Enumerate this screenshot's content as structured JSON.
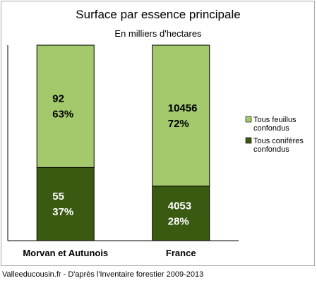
{
  "chart_data": {
    "type": "bar",
    "stacked": true,
    "title": "Surface par essence principale",
    "subtitle": "En milliers d'hectares",
    "categories": [
      "Morvan et Autunois",
      "France"
    ],
    "series": [
      {
        "name": "Tous conifères confondus",
        "color": "#3a5a12",
        "values": [
          55,
          4053
        ],
        "percent_labels": [
          "37%",
          "28%"
        ],
        "label_color": "#ffffff"
      },
      {
        "name": "Tous feuillus confondus",
        "color": "#a3c96c",
        "values": [
          92,
          10456
        ],
        "percent_labels": [
          "63%",
          "72%"
        ],
        "label_color": "#000000"
      }
    ],
    "legend": {
      "placement": "right",
      "entries": [
        {
          "lines": [
            "Tous feuillus",
            "confondus"
          ],
          "color": "#a3c96c"
        },
        {
          "lines": [
            "Tous conifères",
            "confondus"
          ],
          "color": "#3a5a12"
        }
      ]
    },
    "grid": false
  },
  "footer": {
    "source": "Valleeducousin.fr - D'après l'Inventaire forestier 2009-2013"
  }
}
